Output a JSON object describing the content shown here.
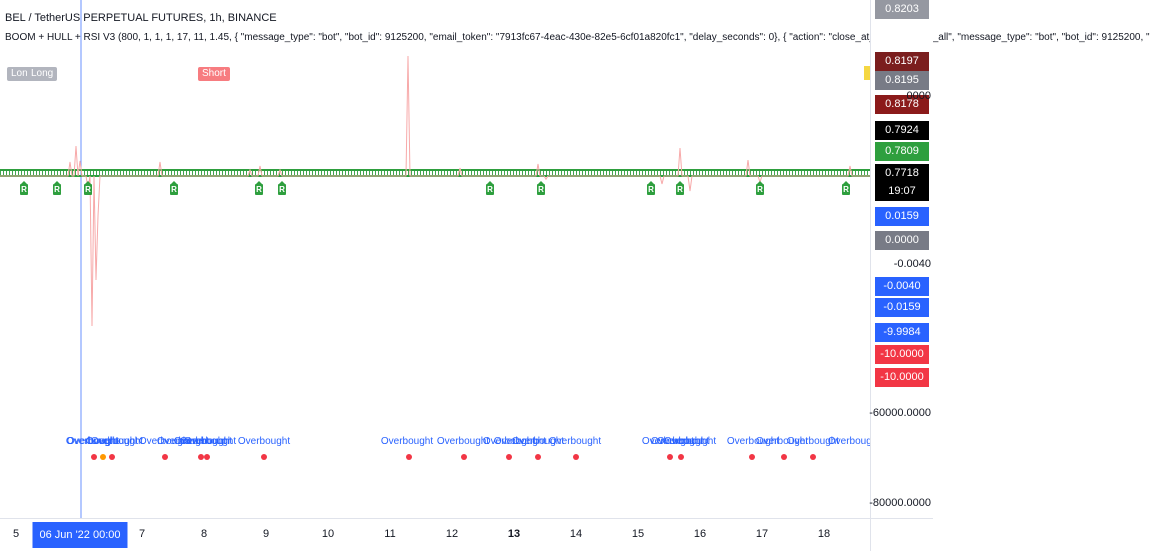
{
  "header": {
    "symbol_line": "BEL / TetherUS PERPETUAL FUTURES, 1h, BINANCE",
    "indicator_line": "BOOM + HULL + RSI V3 (800, 1, 1, 1, 17, 11, 1.45, { \"message_type\": \"bot\", \"bot_id\": 9125200, \"email_token\": \"7913fc67-4eac-430e-82e5-6cf01a820fc1\", \"delay_seconds\": 0}, { \"action\": \"close_at_market_price_all\", \"message_type\": \"bot\", \"bot_id\": 9125200, \""
  },
  "price_scale": {
    "currency": "USDT",
    "badges": [
      {
        "text": "0.8203",
        "bg": "#9598a1",
        "fg": "#ffffff"
      },
      {
        "text": "0.8197",
        "bg": "#7b1e1e",
        "fg": "#ffffff"
      },
      {
        "text": "0.8195",
        "bg": "#787b86",
        "fg": "#ffffff"
      },
      {
        "text": "0.8178",
        "bg": "#8b1a1a",
        "fg": "#ffffff"
      },
      {
        "text": "0.7924",
        "bg": "#000000",
        "fg": "#ffffff"
      },
      {
        "text": "0.7809",
        "bg": "#2e9f3e",
        "fg": "#ffffff"
      },
      {
        "text": "0.7718",
        "bg": "#000000",
        "fg": "#ffffff"
      },
      {
        "text": "19:07",
        "bg": "#000000",
        "fg": "#ffffff"
      },
      {
        "text": "0.0159",
        "bg": "#2962ff",
        "fg": "#ffffff"
      },
      {
        "text": "0.0000",
        "bg": "#787b86",
        "fg": "#ffffff"
      },
      {
        "text": "-0.0040",
        "bg": "#2962ff",
        "fg": "#ffffff"
      },
      {
        "text": "-0.0159",
        "bg": "#2962ff",
        "fg": "#ffffff"
      },
      {
        "text": "-9.9984",
        "bg": "#2962ff",
        "fg": "#ffffff"
      },
      {
        "text": "-10.0000",
        "bg": "#f23645",
        "fg": "#ffffff"
      },
      {
        "text": "-10.0000",
        "bg": "#f23645",
        "fg": "#ffffff"
      }
    ],
    "plain": [
      {
        "text": "0000"
      },
      {
        "text": "-0.0040"
      },
      {
        "text": "-60000.0000"
      },
      {
        "text": "-80000.0000"
      }
    ]
  },
  "time_scale": {
    "ticks": [
      {
        "text": "5",
        "bold": false
      },
      {
        "text": "7",
        "bold": false
      },
      {
        "text": "8",
        "bold": false
      },
      {
        "text": "9",
        "bold": false
      },
      {
        "text": "10",
        "bold": false
      },
      {
        "text": "11",
        "bold": false
      },
      {
        "text": "12",
        "bold": false
      },
      {
        "text": "13",
        "bold": true
      },
      {
        "text": "14",
        "bold": false
      },
      {
        "text": "15",
        "bold": false
      },
      {
        "text": "16",
        "bold": false
      },
      {
        "text": "17",
        "bold": false
      },
      {
        "text": "18",
        "bold": false
      }
    ],
    "crosshair_label": "06 Jun '22   00:00"
  },
  "signals": {
    "long_labels": [
      "Long",
      "Long"
    ],
    "short_label": "Short",
    "overbought_text": "Overbought",
    "overbought_count": 24,
    "r_tag_text": "R",
    "r_tag_count": 13,
    "dot_count": 17
  },
  "colors": {
    "long": "#b2b5be",
    "short": "#f77c80",
    "rsi_line": "#f7a9a9",
    "hull_band": "#2e9f3e",
    "dot_red": "#f23645",
    "dot_orange": "#ff9800",
    "crosshair": "#2962ff",
    "overbought": "#2962ff"
  }
}
